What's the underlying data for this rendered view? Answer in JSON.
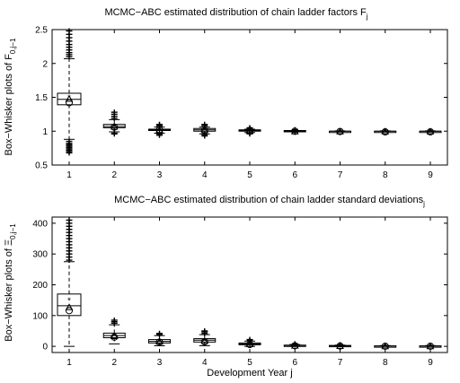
{
  "chart_data": [
    {
      "type": "box",
      "title_main": "MCMC−ABC estimated distribution of chain ladder factors F",
      "title_sub": "j",
      "ylabel_main": "Box−Whisker plots of F",
      "ylabel_sub": "0,j−1",
      "ylim": [
        0.5,
        2.5
      ],
      "yticks": [
        "0.5",
        "1",
        "1.5",
        "2",
        "2.5"
      ],
      "ytick_values": [
        0.5,
        1,
        1.5,
        2,
        2.5
      ],
      "categories": [
        "1",
        "2",
        "3",
        "4",
        "5",
        "6",
        "7",
        "8",
        "9"
      ],
      "boxes": [
        {
          "q1": 1.39,
          "median": 1.47,
          "q3": 1.56,
          "wlo": 0.88,
          "whi": 2.07,
          "out_lo": [
            0.85,
            0.82,
            0.8,
            0.78,
            0.76,
            0.74,
            0.72,
            0.7,
            0.68
          ],
          "out_hi": [
            2.1,
            2.13,
            2.16,
            2.2,
            2.24,
            2.28,
            2.33,
            2.38,
            2.43,
            2.48
          ],
          "star": 1.5,
          "triangle": 1.48,
          "circle": 1.42
        },
        {
          "q1": 1.05,
          "median": 1.07,
          "q3": 1.1,
          "wlo": 0.99,
          "whi": 1.17,
          "out_lo": [
            0.97,
            0.96
          ],
          "out_hi": [
            1.19,
            1.22,
            1.25,
            1.28
          ],
          "star": 1.07,
          "triangle": 1.07,
          "circle": 1.06
        },
        {
          "q1": 1.01,
          "median": 1.02,
          "q3": 1.03,
          "wlo": 0.97,
          "whi": 1.06,
          "out_lo": [
            0.96,
            0.94
          ],
          "out_hi": [
            1.07,
            1.09,
            1.1
          ],
          "star": 1.02,
          "triangle": 1.02,
          "circle": 1.02
        },
        {
          "q1": 1.0,
          "median": 1.02,
          "q3": 1.04,
          "wlo": 0.96,
          "whi": 1.06,
          "out_lo": [
            0.95,
            0.93
          ],
          "out_hi": [
            1.08,
            1.1
          ],
          "star": 1.02,
          "triangle": 1.02,
          "circle": 1.01
        },
        {
          "q1": 1.0,
          "median": 1.01,
          "q3": 1.02,
          "wlo": 0.98,
          "whi": 1.03,
          "out_lo": [
            0.97,
            0.96
          ],
          "out_hi": [
            1.04,
            1.05
          ],
          "star": 1.01,
          "triangle": 1.01,
          "circle": 1.01
        },
        {
          "q1": 1.0,
          "median": 1.0,
          "q3": 1.01,
          "wlo": 0.99,
          "whi": 1.01,
          "out_lo": [
            0.985
          ],
          "out_hi": [
            1.015,
            1.02
          ],
          "star": 1.0,
          "triangle": 1.0,
          "circle": 1.0
        },
        {
          "q1": 1.0,
          "median": 1.0,
          "q3": 1.0,
          "wlo": 0.995,
          "whi": 1.005,
          "out_lo": [],
          "out_hi": [],
          "star": 1.0,
          "triangle": 1.0,
          "circle": 0.995
        },
        {
          "q1": 1.0,
          "median": 1.0,
          "q3": 1.0,
          "wlo": 0.995,
          "whi": 1.005,
          "out_lo": [],
          "out_hi": [],
          "star": 1.0,
          "triangle": 1.0,
          "circle": 0.99
        },
        {
          "q1": 1.0,
          "median": 1.0,
          "q3": 1.0,
          "wlo": 0.995,
          "whi": 1.005,
          "out_lo": [],
          "out_hi": [],
          "star": 1.0,
          "triangle": 1.0,
          "circle": 0.99
        }
      ]
    },
    {
      "type": "box",
      "title_main": "MCMC−ABC estimated distribution of chain ladder standard deviations",
      "title_sub": "j",
      "ylabel_main": "Box−Whisker plots of Ξ",
      "ylabel_sub": "0,j−1",
      "xlabel": "Development Year j",
      "ylim": [
        -20,
        420
      ],
      "yticks": [
        "0",
        "100",
        "200",
        "300",
        "400"
      ],
      "ytick_values": [
        0,
        100,
        200,
        300,
        400
      ],
      "categories": [
        "1",
        "2",
        "3",
        "4",
        "5",
        "6",
        "7",
        "8",
        "9"
      ],
      "boxes": [
        {
          "q1": 100,
          "median": 132,
          "q3": 170,
          "wlo": 0,
          "whi": 275,
          "out_lo": [],
          "out_hi": [
            280,
            290,
            300,
            310,
            320,
            330,
            340,
            350,
            360,
            370,
            380,
            390,
            400,
            410
          ],
          "star": 150,
          "triangle": 128,
          "circle": 116
        },
        {
          "q1": 28,
          "median": 35,
          "q3": 43,
          "wlo": 8,
          "whi": 70,
          "out_lo": [],
          "out_hi": [
            75,
            80,
            85
          ],
          "star": 36,
          "triangle": 34,
          "circle": 30
        },
        {
          "q1": 11,
          "median": 16,
          "q3": 22,
          "wlo": 2,
          "whi": 35,
          "out_lo": [],
          "out_hi": [
            38,
            42
          ],
          "star": 17,
          "triangle": 16,
          "circle": 14
        },
        {
          "q1": 14,
          "median": 20,
          "q3": 25,
          "wlo": 2,
          "whi": 38,
          "out_lo": [],
          "out_hi": [
            42,
            47,
            50
          ],
          "star": 20,
          "triangle": 18,
          "circle": 15
        },
        {
          "q1": 5,
          "median": 8,
          "q3": 11,
          "wlo": 0,
          "whi": 17,
          "out_lo": [],
          "out_hi": [
            19,
            22
          ],
          "star": 8,
          "triangle": 8,
          "circle": 6
        },
        {
          "q1": 2,
          "median": 3,
          "q3": 4,
          "wlo": 0,
          "whi": 6,
          "out_lo": [],
          "out_hi": [
            7,
            8
          ],
          "star": 3,
          "triangle": 3,
          "circle": 2
        },
        {
          "q1": 1,
          "median": 2,
          "q3": 3,
          "wlo": 0,
          "whi": 4,
          "out_lo": [],
          "out_hi": [
            5
          ],
          "star": 2,
          "triangle": 2,
          "circle": 1
        },
        {
          "q1": 0.5,
          "median": 1,
          "q3": 1.5,
          "wlo": 0,
          "whi": 2.5,
          "out_lo": [],
          "out_hi": [],
          "star": 1,
          "triangle": 1,
          "circle": 0.5
        },
        {
          "q1": 0.5,
          "median": 1,
          "q3": 1.5,
          "wlo": 0,
          "whi": 2.5,
          "out_lo": [],
          "out_hi": [],
          "star": 1,
          "triangle": 1,
          "circle": 0.5
        }
      ]
    }
  ]
}
